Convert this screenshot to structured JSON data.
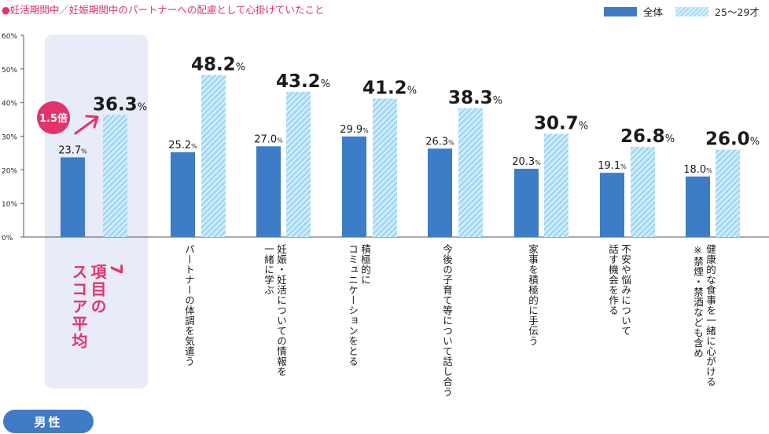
{
  "title": "●妊活期間中／妊娠期間中のパートナーへの配慮として心掛けていたこと",
  "sex_label": "男性",
  "ratio_label": "1.5倍",
  "average_label": "7\n項目の\nスコア平均",
  "colors": {
    "all": "#3d7cc6",
    "age": "#a8dcf6",
    "accent": "#e2336b"
  },
  "chart_data": {
    "type": "bar",
    "ylim": [
      0,
      60
    ],
    "yticks": [
      "0%",
      "10%",
      "20%",
      "30%",
      "40%",
      "50%",
      "60%"
    ],
    "legend": "top-right",
    "grid": false,
    "categories": [
      "",
      "パートナーの体調を気遣う",
      "妊娠・妊活についての情報を\n一緒に学ぶ",
      "積極的に\nコミュニケーションをとる",
      "今後の子育て等について話し合う",
      "家事を積極的に手伝う",
      "不安や悩みについて\n話す機会を作る",
      "健康的な食事を一緒に心がける\n※禁煙・禁酒なども含め"
    ],
    "series": [
      {
        "name": "全体",
        "values": [
          23.7,
          25.2,
          27.0,
          29.9,
          26.3,
          20.3,
          19.1,
          18.0
        ]
      },
      {
        "name": "25～29才",
        "values": [
          36.3,
          48.2,
          43.2,
          41.2,
          38.3,
          30.7,
          26.8,
          26.0
        ]
      }
    ]
  }
}
